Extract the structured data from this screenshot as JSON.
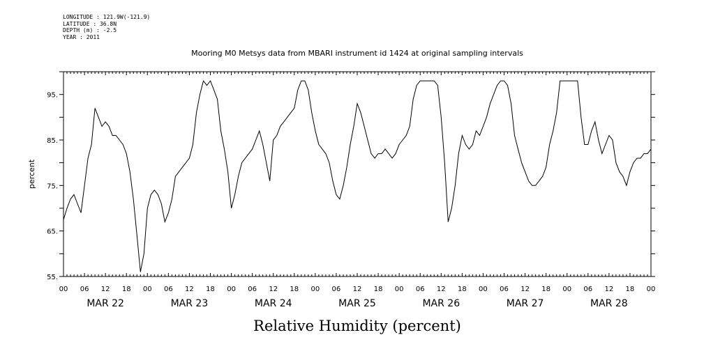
{
  "header": {
    "lines": [
      "LONGITUDE : 121.9W(-121.9)",
      "LATITUDE : 36.8N",
      "DEPTH (m) : -2.5",
      "YEAR : 2011"
    ]
  },
  "chart_data": {
    "type": "line",
    "title": "Mooring M0 Metsys data from MBARI instrument id 1424 at original sampling intervals",
    "xlabel": "Relative Humidity (percent)",
    "ylabel": "percent",
    "ylim": [
      55,
      100
    ],
    "xlim_hours": [
      0,
      168
    ],
    "yticks": [
      55,
      65,
      75,
      85,
      95
    ],
    "xtick_labels": [
      "00",
      "06",
      "12",
      "18",
      "00",
      "06",
      "12",
      "18",
      "00",
      "06",
      "12",
      "18",
      "00",
      "06",
      "12",
      "18",
      "00",
      "06",
      "12",
      "18",
      "00",
      "06",
      "12",
      "18",
      "00",
      "06",
      "12",
      "18",
      "00"
    ],
    "day_labels": [
      "MAR 22",
      "MAR 23",
      "MAR 24",
      "MAR 25",
      "MAR 26",
      "MAR 27",
      "MAR 28"
    ],
    "line_color": "#000000",
    "series": [
      {
        "x": [
          0,
          1,
          2,
          3,
          4,
          5,
          6,
          7,
          8,
          9,
          10,
          11,
          12,
          13,
          14,
          15,
          16,
          17,
          18,
          19,
          20,
          21,
          22,
          23,
          24,
          25,
          26,
          27,
          28,
          29,
          30,
          31,
          32,
          33,
          34,
          35,
          36,
          37,
          38,
          39,
          40,
          41,
          42,
          43,
          44,
          45,
          46,
          47,
          48,
          49,
          50,
          51,
          52,
          53,
          54,
          55,
          56,
          57,
          58,
          59,
          60,
          61,
          62,
          63,
          64,
          65,
          66,
          67,
          68,
          69,
          70,
          71,
          72,
          73,
          74,
          75,
          76,
          77,
          78,
          79,
          80,
          81,
          82,
          83,
          84,
          85,
          86,
          87,
          88,
          89,
          90,
          91,
          92,
          93,
          94,
          95,
          96,
          97,
          98,
          99,
          100,
          101,
          102,
          103,
          104,
          105,
          106,
          107,
          108,
          109,
          110,
          111,
          112,
          113,
          114,
          115,
          116,
          117,
          118,
          119,
          120,
          121,
          122,
          123,
          124,
          125,
          126,
          127,
          128,
          129,
          130,
          131,
          132,
          133,
          134,
          135,
          136,
          137,
          138,
          139,
          140,
          141,
          142,
          143,
          144,
          145,
          146,
          147,
          148,
          149,
          150,
          151,
          152,
          153,
          154,
          155,
          156,
          157,
          158,
          159,
          160,
          161,
          162,
          163,
          164,
          165,
          166,
          167,
          168
        ],
        "y": [
          67.5,
          70,
          72,
          73,
          71,
          69,
          75,
          81,
          84,
          92,
          90,
          88,
          89,
          88,
          86,
          86,
          85,
          84,
          82,
          78,
          72,
          64,
          56,
          60,
          70,
          73,
          74,
          73,
          71,
          67,
          69,
          72,
          77,
          78,
          79,
          80,
          81,
          84,
          91,
          95,
          98,
          97,
          98,
          96,
          94,
          87,
          83,
          78,
          70,
          73,
          77,
          80,
          81,
          82,
          83,
          85,
          87,
          84,
          80,
          76,
          85,
          86,
          88,
          89,
          90,
          91,
          92,
          96,
          98,
          98,
          96,
          91,
          87,
          84,
          83,
          82,
          80,
          76,
          73,
          72,
          75,
          79,
          84,
          88,
          93,
          91,
          88,
          85,
          82,
          81,
          82,
          82,
          83,
          82,
          81,
          82,
          84,
          85,
          86,
          88,
          94,
          97,
          98,
          98,
          98,
          98,
          98,
          97,
          90,
          80,
          67,
          70,
          75,
          82,
          86,
          84,
          83,
          84,
          87,
          86,
          88,
          90,
          93,
          95,
          97,
          98,
          98,
          97,
          93,
          86,
          83,
          80,
          78,
          76,
          75,
          75,
          76,
          77,
          79,
          84,
          87,
          91,
          98,
          98,
          98,
          98,
          98,
          98,
          90,
          84,
          84,
          87,
          89,
          85,
          82,
          84,
          86,
          85,
          80,
          78,
          77,
          75,
          78,
          80,
          81,
          81,
          82,
          82,
          83
        ]
      }
    ]
  }
}
